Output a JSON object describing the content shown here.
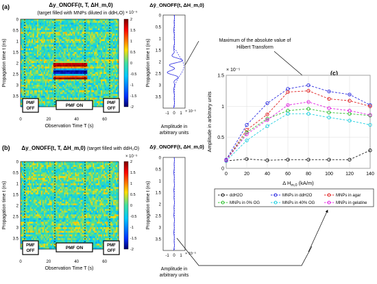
{
  "panel_a": {
    "label": "(a)",
    "title": "Δy_ONOFF(t, T, ΔH_m,0)",
    "subtitle": "(target filled with MNPs diluted in ddH₂O)",
    "exp_note": "× 10⁻⁵",
    "side_title": "Δȳ_ONOFF(t, ΔH_m,0)",
    "side_exp": "× 10⁻⁵"
  },
  "panel_b": {
    "label": "(b)",
    "title": "Δy_ONOFF(t, T, ΔH_m,0)",
    "subtitle": "(target filled with ddH₂O)",
    "exp_note": "× 10⁻⁵",
    "side_title": "Δȳ_ONOFF(t, ΔH_m,0)",
    "side_exp": "× 10⁻⁵"
  },
  "heatmap": {
    "ylabel": "Propagation time t (ns)",
    "xlabel": "Observation Time T (s)",
    "yticks": [
      "0",
      "0.5",
      "1",
      "1.5",
      "2",
      "2.5",
      "3",
      "3.5"
    ],
    "xticks": [
      "0",
      "20",
      "40",
      "60"
    ],
    "colorbar_ticks": [
      "2",
      "1.5",
      "1",
      "0.5",
      "0",
      "-0.5",
      "-1",
      "-1.5",
      "-2"
    ],
    "pmf_off": "PMF\nOFF",
    "pmf_on": "PMF ON"
  },
  "side": {
    "xticks": [
      "-1",
      "0",
      "1"
    ],
    "xlabel_line1": "Amplitude in",
    "xlabel_line2": "arbitrary units",
    "exp_label": "× 10⁻⁵"
  },
  "annotation": "Maximum of the absolute value of\nHilbert Transform",
  "chart_data": {
    "type": "line",
    "label": "(c)",
    "exp_label": "× 10⁻⁵",
    "ylabel": "Amplitude in arbitrary units",
    "xlabel": "Δ H_m,0 (kA/m)",
    "x": [
      0,
      20,
      40,
      60,
      80,
      100,
      120,
      140
    ],
    "xlim": [
      0,
      140
    ],
    "ylim": [
      0,
      1.5
    ],
    "xticks": [
      0,
      20,
      40,
      60,
      80,
      100,
      120,
      140
    ],
    "yticks": [
      0,
      0.5,
      1,
      1.5
    ],
    "grid": true,
    "legend_position": "bottom",
    "series": [
      {
        "name": "ddH2O",
        "color": "#222222",
        "values": [
          0.12,
          0.15,
          0.13,
          0.14,
          0.14,
          0.14,
          0.14,
          0.29
        ]
      },
      {
        "name": "MNPs in ddH2O",
        "color": "#2a2ae0",
        "values": [
          0.14,
          0.7,
          1.05,
          1.28,
          1.34,
          1.24,
          1.19,
          1.02
        ]
      },
      {
        "name": "MNPs in agar",
        "color": "#e02020",
        "values": [
          0.13,
          0.62,
          0.87,
          1.23,
          1.25,
          1.12,
          1.09,
          1.0
        ]
      },
      {
        "name": "MNPs in 0% OG",
        "color": "#2ec02e",
        "values": [
          0.13,
          0.58,
          0.8,
          0.93,
          0.96,
          0.9,
          0.88,
          0.85
        ]
      },
      {
        "name": "MNPs in 40% OG",
        "color": "#20d0e0",
        "values": [
          0.12,
          0.45,
          0.68,
          0.88,
          0.88,
          0.82,
          0.77,
          0.7
        ]
      },
      {
        "name": "MNPs in gelatine",
        "color": "#e020e0",
        "values": [
          0.13,
          0.55,
          0.78,
          1.02,
          1.07,
          0.97,
          0.93,
          0.86
        ]
      }
    ]
  }
}
